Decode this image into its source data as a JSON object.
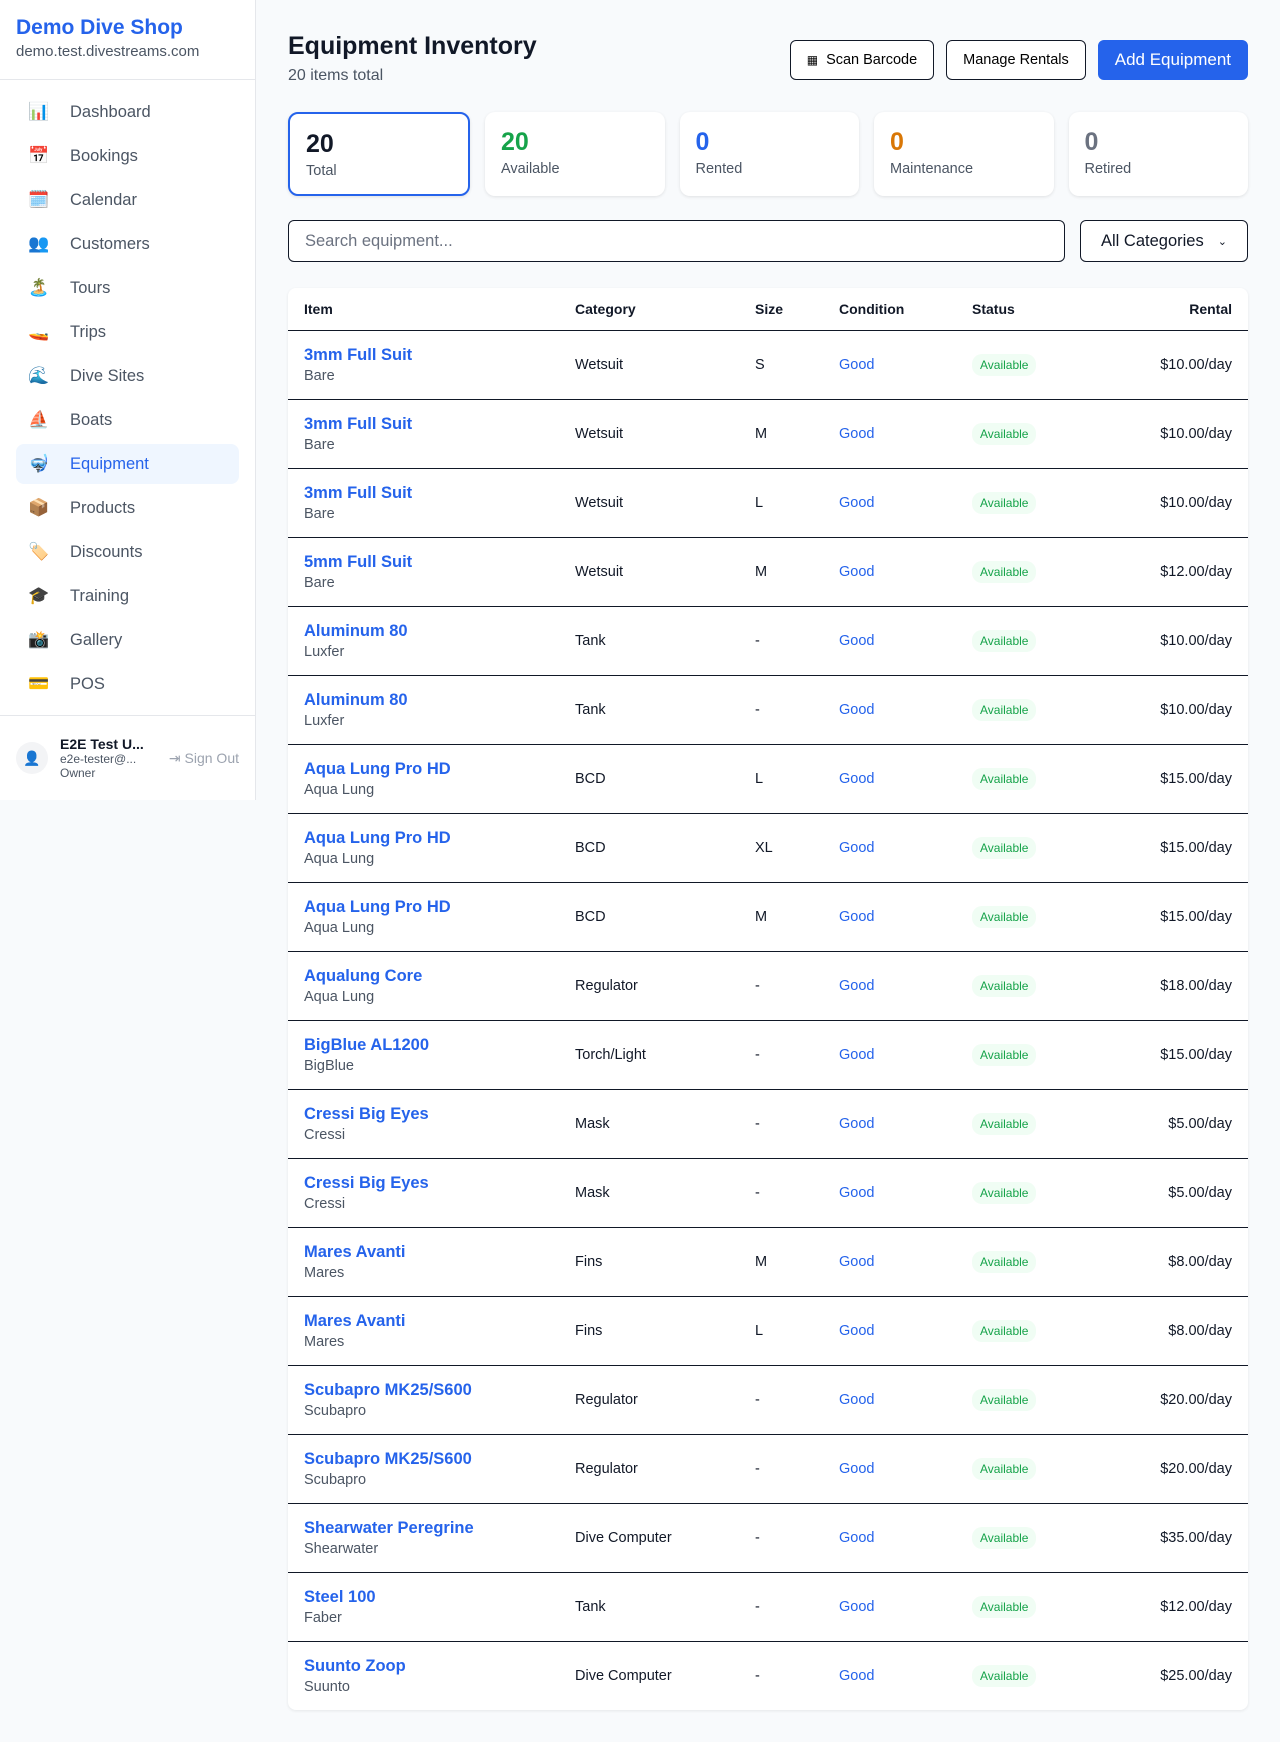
{
  "sidebar": {
    "brand": "Demo Dive Shop",
    "domain": "demo.test.divestreams.com",
    "items": [
      {
        "label": "Dashboard",
        "icon": "📊"
      },
      {
        "label": "Bookings",
        "icon": "📅"
      },
      {
        "label": "Calendar",
        "icon": "🗓️"
      },
      {
        "label": "Customers",
        "icon": "👥"
      },
      {
        "label": "Tours",
        "icon": "🏝️"
      },
      {
        "label": "Trips",
        "icon": "🚤"
      },
      {
        "label": "Dive Sites",
        "icon": "🌊"
      },
      {
        "label": "Boats",
        "icon": "⛵"
      },
      {
        "label": "Equipment",
        "icon": "🤿"
      },
      {
        "label": "Products",
        "icon": "📦"
      },
      {
        "label": "Discounts",
        "icon": "🏷️"
      },
      {
        "label": "Training",
        "icon": "🎓"
      },
      {
        "label": "Gallery",
        "icon": "📸"
      },
      {
        "label": "POS",
        "icon": "💳"
      }
    ],
    "active": "Equipment",
    "user": {
      "name": "E2E Test U...",
      "email": "e2e-tester@...",
      "role": "Owner",
      "sign_out": "Sign Out"
    }
  },
  "header": {
    "title": "Equipment Inventory",
    "subtitle": "20 items total",
    "scan": "Scan Barcode",
    "manage": "Manage Rentals",
    "add": "Add Equipment"
  },
  "stats": [
    {
      "value": "20",
      "label": "Total",
      "color": "#111827"
    },
    {
      "value": "20",
      "label": "Available",
      "color": "#16a34a"
    },
    {
      "value": "0",
      "label": "Rented",
      "color": "#2563eb"
    },
    {
      "value": "0",
      "label": "Maintenance",
      "color": "#d97706"
    },
    {
      "value": "0",
      "label": "Retired",
      "color": "#6b7280"
    }
  ],
  "filters": {
    "search_placeholder": "Search equipment...",
    "category": "All Categories"
  },
  "table": {
    "columns": [
      "Item",
      "Category",
      "Size",
      "Condition",
      "Status",
      "Rental"
    ],
    "rows": [
      [
        "3mm Full Suit",
        "Bare",
        "Wetsuit",
        "S",
        "Good",
        "Available",
        "$10.00/day"
      ],
      [
        "3mm Full Suit",
        "Bare",
        "Wetsuit",
        "M",
        "Good",
        "Available",
        "$10.00/day"
      ],
      [
        "3mm Full Suit",
        "Bare",
        "Wetsuit",
        "L",
        "Good",
        "Available",
        "$10.00/day"
      ],
      [
        "5mm Full Suit",
        "Bare",
        "Wetsuit",
        "M",
        "Good",
        "Available",
        "$12.00/day"
      ],
      [
        "Aluminum 80",
        "Luxfer",
        "Tank",
        "-",
        "Good",
        "Available",
        "$10.00/day"
      ],
      [
        "Aluminum 80",
        "Luxfer",
        "Tank",
        "-",
        "Good",
        "Available",
        "$10.00/day"
      ],
      [
        "Aqua Lung Pro HD",
        "Aqua Lung",
        "BCD",
        "L",
        "Good",
        "Available",
        "$15.00/day"
      ],
      [
        "Aqua Lung Pro HD",
        "Aqua Lung",
        "BCD",
        "XL",
        "Good",
        "Available",
        "$15.00/day"
      ],
      [
        "Aqua Lung Pro HD",
        "Aqua Lung",
        "BCD",
        "M",
        "Good",
        "Available",
        "$15.00/day"
      ],
      [
        "Aqualung Core",
        "Aqua Lung",
        "Regulator",
        "-",
        "Good",
        "Available",
        "$18.00/day"
      ],
      [
        "BigBlue AL1200",
        "BigBlue",
        "Torch/Light",
        "-",
        "Good",
        "Available",
        "$15.00/day"
      ],
      [
        "Cressi Big Eyes",
        "Cressi",
        "Mask",
        "-",
        "Good",
        "Available",
        "$5.00/day"
      ],
      [
        "Cressi Big Eyes",
        "Cressi",
        "Mask",
        "-",
        "Good",
        "Available",
        "$5.00/day"
      ],
      [
        "Mares Avanti",
        "Mares",
        "Fins",
        "M",
        "Good",
        "Available",
        "$8.00/day"
      ],
      [
        "Mares Avanti",
        "Mares",
        "Fins",
        "L",
        "Good",
        "Available",
        "$8.00/day"
      ],
      [
        "Scubapro MK25/S600",
        "Scubapro",
        "Regulator",
        "-",
        "Good",
        "Available",
        "$20.00/day"
      ],
      [
        "Scubapro MK25/S600",
        "Scubapro",
        "Regulator",
        "-",
        "Good",
        "Available",
        "$20.00/day"
      ],
      [
        "Shearwater Peregrine",
        "Shearwater",
        "Dive Computer",
        "-",
        "Good",
        "Available",
        "$35.00/day"
      ],
      [
        "Steel 100",
        "Faber",
        "Tank",
        "-",
        "Good",
        "Available",
        "$12.00/day"
      ],
      [
        "Suunto Zoop",
        "Suunto",
        "Dive Computer",
        "-",
        "Good",
        "Available",
        "$25.00/day"
      ]
    ]
  }
}
